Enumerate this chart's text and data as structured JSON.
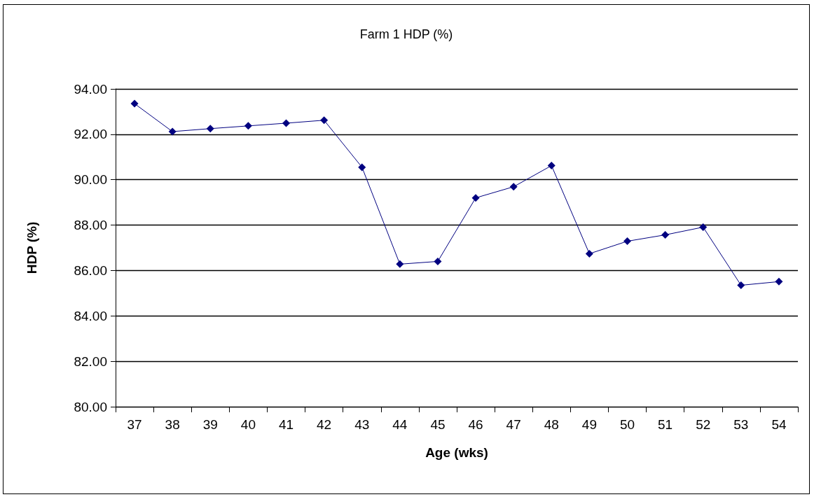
{
  "chart_data": {
    "type": "line",
    "title": "Farm 1 HDP (%)",
    "xlabel": "Age (wks)",
    "ylabel": "HDP (%)",
    "categories": [
      "37",
      "38",
      "39",
      "40",
      "41",
      "42",
      "43",
      "44",
      "45",
      "46",
      "47",
      "48",
      "49",
      "50",
      "51",
      "52",
      "53",
      "54"
    ],
    "series": [
      {
        "color": "#000080",
        "values": [
          93.35,
          92.12,
          92.25,
          92.37,
          92.49,
          92.62,
          90.55,
          86.28,
          86.4,
          89.2,
          89.69,
          90.62,
          86.74,
          87.29,
          87.57,
          87.91,
          85.35,
          85.51
        ]
      }
    ],
    "ylim": [
      80,
      94
    ],
    "yticks": [
      {
        "value": 80,
        "label": "80.00"
      },
      {
        "value": 82,
        "label": "82.00"
      },
      {
        "value": 84,
        "label": "84.00"
      },
      {
        "value": 86,
        "label": "86.00"
      },
      {
        "value": 88,
        "label": "88.00"
      },
      {
        "value": 90,
        "label": "90.00"
      },
      {
        "value": 92,
        "label": "92.00"
      },
      {
        "value": 94,
        "label": "94.00"
      }
    ],
    "grid": "y",
    "marker": "diamond",
    "line_style": "solid"
  }
}
